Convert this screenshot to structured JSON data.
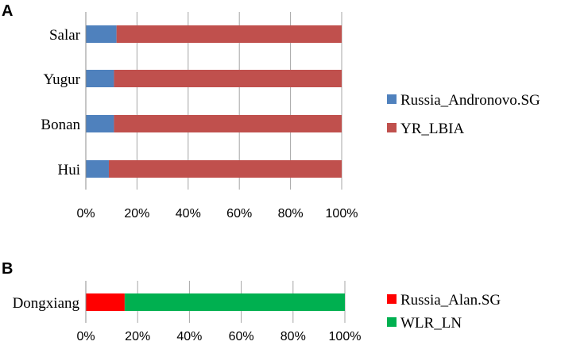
{
  "chart_data": [
    {
      "panel": "A",
      "type": "bar",
      "orientation": "horizontal",
      "stacked": true,
      "normalized": true,
      "categories": [
        "Salar",
        "Yugur",
        "Bonan",
        "Hui"
      ],
      "series": [
        {
          "name": "Russia_Andronovo.SG",
          "color": "#4f81bd",
          "values": [
            12,
            11,
            11,
            9
          ]
        },
        {
          "name": "YR_LBIA",
          "color": "#c0504d",
          "values": [
            88,
            89,
            89,
            91
          ]
        }
      ],
      "xlim": [
        0,
        100
      ],
      "xticks": [
        "0%",
        "20%",
        "40%",
        "60%",
        "80%",
        "100%"
      ],
      "grid": "vertical",
      "legend_position": "right"
    },
    {
      "panel": "B",
      "type": "bar",
      "orientation": "horizontal",
      "stacked": true,
      "normalized": true,
      "categories": [
        "Dongxiang"
      ],
      "series": [
        {
          "name": "Russia_Alan.SG",
          "color": "#ff0000",
          "values": [
            15
          ]
        },
        {
          "name": "WLR_LN",
          "color": "#00b050",
          "values": [
            85
          ]
        }
      ],
      "xlim": [
        0,
        100
      ],
      "xticks": [
        "0%",
        "20%",
        "40%",
        "60%",
        "80%",
        "100%"
      ],
      "grid": "vertical",
      "legend_position": "right"
    }
  ]
}
